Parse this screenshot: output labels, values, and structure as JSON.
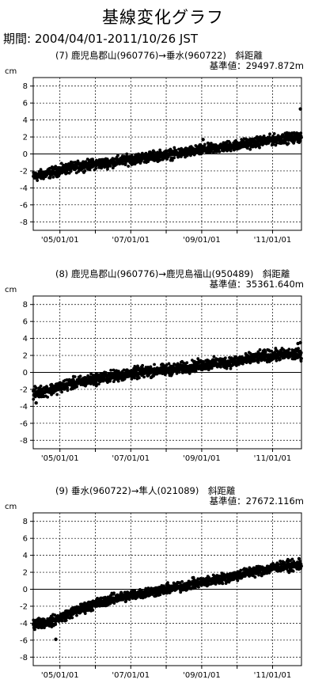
{
  "page": {
    "title": "基線変化グラフ",
    "period": "期間: 2004/04/01-2011/10/26 JST"
  },
  "chart_data": [
    {
      "type": "scatter",
      "heading": "(7) 鹿児島郡山(960776)→垂水(960722)　斜距離",
      "reference": "基準値：29497.872m",
      "ylabel": "cm",
      "ylim": [
        -9,
        9
      ],
      "yticks": [
        "8",
        "6",
        "4",
        "2",
        "0",
        "-2",
        "-4",
        "-6",
        "-8"
      ],
      "xlim": [
        "2004-04-01",
        "2011-10-26"
      ],
      "xticks": [
        {
          "date": "2005-01-01",
          "label": "'05/01/01"
        },
        {
          "date": "2007-01-01",
          "label": "'07/01/01"
        },
        {
          "date": "2009-01-01",
          "label": "'09/01/01"
        },
        {
          "date": "2011-01-01",
          "label": "'11/01/01"
        }
      ],
      "grid": true,
      "trend": [
        {
          "x": "2004-04-01",
          "y": -2.7
        },
        {
          "x": "2004-10-01",
          "y": -2.2
        },
        {
          "x": "2005-04-01",
          "y": -1.7
        },
        {
          "x": "2005-10-01",
          "y": -1.3
        },
        {
          "x": "2006-04-01",
          "y": -1.1
        },
        {
          "x": "2006-10-01",
          "y": -0.8
        },
        {
          "x": "2007-04-01",
          "y": -0.5
        },
        {
          "x": "2007-10-01",
          "y": -0.2
        },
        {
          "x": "2008-04-01",
          "y": 0.0
        },
        {
          "x": "2008-10-01",
          "y": 0.3
        },
        {
          "x": "2009-04-01",
          "y": 0.6
        },
        {
          "x": "2009-10-01",
          "y": 0.9
        },
        {
          "x": "2010-04-01",
          "y": 1.2
        },
        {
          "x": "2010-10-01",
          "y": 1.5
        },
        {
          "x": "2011-04-01",
          "y": 1.8
        },
        {
          "x": "2011-10-26",
          "y": 2.0
        }
      ],
      "spread": 0.45,
      "outliers": [
        {
          "x": "2011-10-15",
          "y": 5.3
        },
        {
          "x": "2009-01-15",
          "y": 1.7
        }
      ]
    },
    {
      "type": "scatter",
      "heading": "(8) 鹿児島郡山(960776)→鹿児島福山(950489)　斜距離",
      "reference": "基準値：35361.640m",
      "ylabel": "cm",
      "ylim": [
        -9,
        9
      ],
      "yticks": [
        "8",
        "6",
        "4",
        "2",
        "0",
        "-2",
        "-4",
        "-6",
        "-8"
      ],
      "xlim": [
        "2004-04-01",
        "2011-10-26"
      ],
      "xticks": [
        {
          "date": "2005-01-01",
          "label": "'05/01/01"
        },
        {
          "date": "2007-01-01",
          "label": "'07/01/01"
        },
        {
          "date": "2009-01-01",
          "label": "'09/01/01"
        },
        {
          "date": "2011-01-01",
          "label": "'11/01/01"
        }
      ],
      "grid": true,
      "trend": [
        {
          "x": "2004-04-01",
          "y": -2.5
        },
        {
          "x": "2004-10-01",
          "y": -2.0
        },
        {
          "x": "2005-04-01",
          "y": -1.4
        },
        {
          "x": "2005-10-01",
          "y": -1.0
        },
        {
          "x": "2006-04-01",
          "y": -0.6
        },
        {
          "x": "2006-10-01",
          "y": -0.3
        },
        {
          "x": "2007-04-01",
          "y": 0.0
        },
        {
          "x": "2007-10-01",
          "y": 0.2
        },
        {
          "x": "2008-04-01",
          "y": 0.4
        },
        {
          "x": "2008-10-01",
          "y": 0.7
        },
        {
          "x": "2009-04-01",
          "y": 1.0
        },
        {
          "x": "2009-10-01",
          "y": 1.2
        },
        {
          "x": "2010-04-01",
          "y": 1.5
        },
        {
          "x": "2010-10-01",
          "y": 1.9
        },
        {
          "x": "2011-04-01",
          "y": 2.1
        },
        {
          "x": "2011-10-26",
          "y": 2.1
        }
      ],
      "spread": 0.5,
      "outliers": [
        {
          "x": "2011-09-20",
          "y": 3.4
        },
        {
          "x": "2011-10-15",
          "y": 3.5
        },
        {
          "x": "2004-05-01",
          "y": -3.6
        }
      ]
    },
    {
      "type": "scatter",
      "heading": "(9) 垂水(960722)→隼人(021089)　斜距離",
      "reference": "基準値：27672.116m",
      "ylabel": "cm",
      "ylim": [
        -9,
        9
      ],
      "yticks": [
        "8",
        "6",
        "4",
        "2",
        "0",
        "-2",
        "-4",
        "-6",
        "-8"
      ],
      "xlim": [
        "2004-04-01",
        "2011-10-26"
      ],
      "xticks": [
        {
          "date": "2005-01-01",
          "label": "'05/01/01"
        },
        {
          "date": "2007-01-01",
          "label": "'07/01/01"
        },
        {
          "date": "2009-01-01",
          "label": "'09/01/01"
        },
        {
          "date": "2011-01-01",
          "label": "'11/01/01"
        }
      ],
      "grid": true,
      "trend": [
        {
          "x": "2004-04-01",
          "y": -4.1
        },
        {
          "x": "2004-10-01",
          "y": -3.8
        },
        {
          "x": "2005-04-01",
          "y": -2.9
        },
        {
          "x": "2005-10-01",
          "y": -2.1
        },
        {
          "x": "2006-04-01",
          "y": -1.4
        },
        {
          "x": "2006-10-01",
          "y": -0.9
        },
        {
          "x": "2007-04-01",
          "y": -0.5
        },
        {
          "x": "2007-10-01",
          "y": -0.2
        },
        {
          "x": "2008-04-01",
          "y": 0.2
        },
        {
          "x": "2008-10-01",
          "y": 0.6
        },
        {
          "x": "2009-04-01",
          "y": 1.0
        },
        {
          "x": "2009-10-01",
          "y": 1.4
        },
        {
          "x": "2010-04-01",
          "y": 1.9
        },
        {
          "x": "2010-10-01",
          "y": 2.3
        },
        {
          "x": "2011-04-01",
          "y": 2.7
        },
        {
          "x": "2011-10-26",
          "y": 2.8
        }
      ],
      "spread": 0.45,
      "outliers": [
        {
          "x": "2004-11-20",
          "y": -5.9
        },
        {
          "x": "2011-10-01",
          "y": 3.6
        }
      ]
    }
  ]
}
